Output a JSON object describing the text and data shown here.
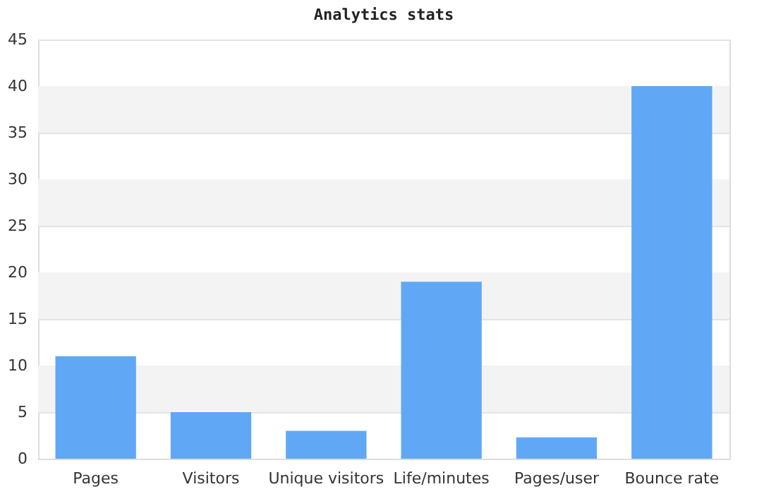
{
  "chart_data": {
    "type": "bar",
    "title": "Analytics stats",
    "categories": [
      "Pages",
      "Visitors",
      "Unique visitors",
      "Life/minutes",
      "Pages/user",
      "Bounce rate"
    ],
    "values": [
      11,
      5,
      3,
      19,
      2.3,
      40
    ],
    "color": "#60a8f5",
    "ylim": [
      0,
      45
    ],
    "yticks": [
      0,
      5,
      10,
      15,
      20,
      25,
      30,
      35,
      40,
      45
    ],
    "grid": "y"
  }
}
